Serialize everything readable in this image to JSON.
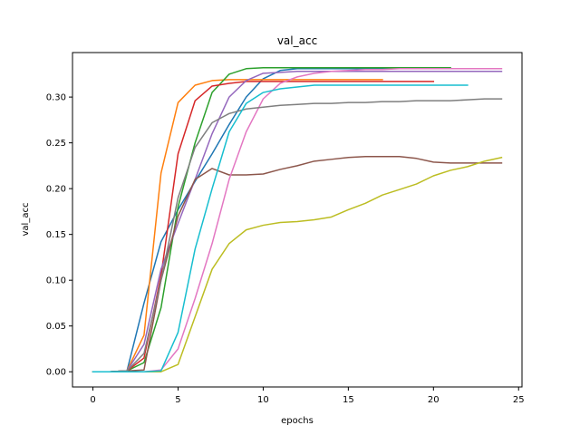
{
  "chart_data": {
    "type": "line",
    "title": "val_acc",
    "xlabel": "epochs",
    "ylabel": "val_acc",
    "xlim": [
      -1.2,
      25.2
    ],
    "ylim": [
      -0.0166,
      0.3486
    ],
    "xticks": [
      0,
      5,
      10,
      15,
      20,
      25
    ],
    "yticks": [
      0.0,
      0.05,
      0.1,
      0.15,
      0.2,
      0.25,
      0.3
    ],
    "ytick_labels": [
      "0.00",
      "0.05",
      "0.10",
      "0.15",
      "0.20",
      "0.25",
      "0.30"
    ],
    "grid": false,
    "series": [
      {
        "color": "#1f77b4",
        "x": [
          0,
          1,
          2,
          3,
          4,
          5,
          6,
          7,
          8,
          9,
          10,
          11,
          12,
          13,
          14,
          15,
          16,
          17,
          18,
          19,
          20,
          21
        ],
        "y": [
          0.0,
          0.0,
          0.001,
          0.075,
          0.142,
          0.177,
          0.208,
          0.238,
          0.27,
          0.3,
          0.32,
          0.329,
          0.331,
          0.331,
          0.331,
          0.331,
          0.331,
          0.331,
          0.331,
          0.331,
          0.331,
          0.331
        ]
      },
      {
        "color": "#ff7f0e",
        "x": [
          0,
          1,
          2,
          3,
          4,
          5,
          6,
          7,
          8,
          9,
          10,
          11,
          12,
          13,
          14,
          15,
          16,
          17
        ],
        "y": [
          0.0,
          0.0,
          0.001,
          0.04,
          0.217,
          0.294,
          0.313,
          0.318,
          0.319,
          0.319,
          0.319,
          0.319,
          0.319,
          0.319,
          0.319,
          0.319,
          0.319,
          0.319
        ]
      },
      {
        "color": "#2ca02c",
        "x": [
          0,
          1,
          2,
          3,
          4,
          5,
          6,
          7,
          8,
          9,
          10,
          11,
          12,
          13,
          14,
          15,
          16,
          17,
          18,
          19,
          20,
          21
        ],
        "y": [
          0.0,
          0.0,
          0.001,
          0.01,
          0.07,
          0.18,
          0.25,
          0.305,
          0.325,
          0.331,
          0.332,
          0.332,
          0.332,
          0.332,
          0.332,
          0.332,
          0.332,
          0.332,
          0.332,
          0.332,
          0.332,
          0.332
        ]
      },
      {
        "color": "#d62728",
        "x": [
          0,
          1,
          2,
          3,
          4,
          5,
          6,
          7,
          8,
          9,
          10,
          11,
          12,
          13,
          14,
          15,
          16,
          17,
          18,
          19,
          20
        ],
        "y": [
          0.0,
          0.0,
          0.001,
          0.015,
          0.105,
          0.238,
          0.296,
          0.312,
          0.315,
          0.317,
          0.317,
          0.317,
          0.317,
          0.317,
          0.317,
          0.317,
          0.317,
          0.317,
          0.317,
          0.317,
          0.317
        ]
      },
      {
        "color": "#9467bd",
        "x": [
          0,
          1,
          2,
          3,
          4,
          5,
          6,
          7,
          8,
          9,
          10,
          11,
          12,
          13,
          14,
          15,
          16,
          17,
          18,
          19,
          20,
          21,
          22,
          23,
          24
        ],
        "y": [
          0.0,
          0.0,
          0.001,
          0.03,
          0.112,
          0.162,
          0.21,
          0.26,
          0.3,
          0.318,
          0.326,
          0.327,
          0.328,
          0.328,
          0.328,
          0.328,
          0.328,
          0.328,
          0.328,
          0.328,
          0.328,
          0.328,
          0.328,
          0.328,
          0.328
        ]
      },
      {
        "color": "#8c564b",
        "x": [
          0,
          1,
          2,
          3,
          4,
          5,
          6,
          7,
          8,
          9,
          10,
          11,
          12,
          13,
          14,
          15,
          16,
          17,
          18,
          19,
          20,
          21,
          22,
          23,
          24
        ],
        "y": [
          0.0,
          0.0,
          0.001,
          0.002,
          0.1,
          0.17,
          0.21,
          0.222,
          0.215,
          0.215,
          0.216,
          0.221,
          0.225,
          0.23,
          0.232,
          0.234,
          0.235,
          0.235,
          0.235,
          0.233,
          0.229,
          0.228,
          0.228,
          0.228,
          0.228
        ]
      },
      {
        "color": "#e377c2",
        "x": [
          0,
          1,
          2,
          3,
          4,
          5,
          6,
          7,
          8,
          9,
          10,
          11,
          12,
          13,
          14,
          15,
          16,
          17,
          18,
          19,
          20,
          21,
          22,
          23,
          24
        ],
        "y": [
          0.0,
          0.0,
          0.0,
          0.0,
          0.002,
          0.025,
          0.08,
          0.14,
          0.21,
          0.262,
          0.298,
          0.315,
          0.322,
          0.326,
          0.328,
          0.329,
          0.33,
          0.33,
          0.331,
          0.331,
          0.331,
          0.331,
          0.331,
          0.331,
          0.331
        ]
      },
      {
        "color": "#7f7f7f",
        "x": [
          0,
          1,
          2,
          3,
          4,
          5,
          6,
          7,
          8,
          9,
          10,
          11,
          12,
          13,
          14,
          15,
          16,
          17,
          18,
          19,
          20,
          21,
          22,
          23,
          24
        ],
        "y": [
          0.0,
          0.0,
          0.001,
          0.02,
          0.1,
          0.19,
          0.245,
          0.272,
          0.282,
          0.287,
          0.289,
          0.291,
          0.292,
          0.293,
          0.293,
          0.294,
          0.294,
          0.295,
          0.295,
          0.296,
          0.296,
          0.296,
          0.297,
          0.298,
          0.298
        ]
      },
      {
        "color": "#bcbd22",
        "x": [
          0,
          1,
          2,
          3,
          4,
          5,
          6,
          7,
          8,
          9,
          10,
          11,
          12,
          13,
          14,
          15,
          16,
          17,
          18,
          19,
          20,
          21,
          22,
          23,
          24
        ],
        "y": [
          0.0,
          0.0,
          0.0,
          0.0,
          0.0,
          0.008,
          0.06,
          0.112,
          0.14,
          0.155,
          0.16,
          0.163,
          0.164,
          0.166,
          0.169,
          0.177,
          0.184,
          0.193,
          0.199,
          0.205,
          0.214,
          0.22,
          0.224,
          0.23,
          0.234
        ]
      },
      {
        "color": "#17becf",
        "x": [
          0,
          1,
          2,
          3,
          4,
          5,
          6,
          7,
          8,
          9,
          10,
          11,
          12,
          13,
          14,
          15,
          16,
          17,
          18,
          19,
          20,
          21,
          22
        ],
        "y": [
          0.0,
          0.0,
          0.0,
          0.0,
          0.001,
          0.043,
          0.134,
          0.2,
          0.262,
          0.293,
          0.305,
          0.309,
          0.311,
          0.313,
          0.313,
          0.313,
          0.313,
          0.313,
          0.313,
          0.313,
          0.313,
          0.313,
          0.313
        ]
      }
    ]
  }
}
